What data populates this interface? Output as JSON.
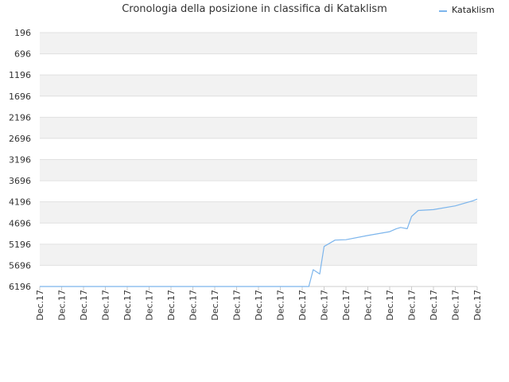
{
  "chart_data": {
    "type": "line",
    "title": "Cronologia della posizione in classifica di Kataklism",
    "xlabel": "",
    "ylabel": "",
    "y_reversed": true,
    "ylim": [
      6196,
      196
    ],
    "y_ticks": [
      "196",
      "696",
      "1196",
      "1696",
      "2196",
      "2696",
      "3196",
      "3696",
      "4196",
      "4696",
      "5196",
      "5696",
      "6196"
    ],
    "x_ticks": [
      "Dec.17",
      "Dec.17",
      "Dec.17",
      "Dec.17",
      "Dec.17",
      "Dec.17",
      "Dec.17",
      "Dec.17",
      "Dec.17",
      "Dec.17",
      "Dec.17",
      "Dec.17",
      "Dec.17",
      "Dec.17",
      "Dec.17",
      "Dec.17",
      "Dec.17",
      "Dec.17",
      "Dec.17",
      "Dec.17",
      "Dec.17"
    ],
    "grid": true,
    "alternating_bands": true,
    "legend_position": "top-right",
    "series": [
      {
        "name": "Kataklism",
        "color": "#7cb5ec",
        "x": [
          0,
          12,
          12.3,
          12.4,
          12.5,
          12.8,
          13,
          13.5,
          14,
          15,
          16,
          16.3,
          16.5,
          16.8,
          17,
          17.3,
          18,
          19,
          19.8,
          20
        ],
        "values": [
          6196,
          6196,
          6196,
          6000,
          5800,
          5900,
          5250,
          5100,
          5090,
          4990,
          4900,
          4830,
          4800,
          4830,
          4540,
          4400,
          4380,
          4290,
          4170,
          4130
        ]
      }
    ]
  }
}
